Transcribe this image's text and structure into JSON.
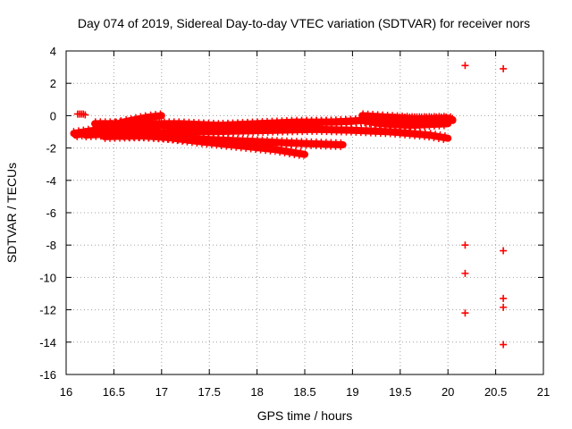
{
  "chart_data": {
    "type": "scatter",
    "title": "Day 074 of 2019, Sidereal Day-to-day VTEC variation (SDTVAR) for receiver nors",
    "xlabel": "GPS time / hours",
    "ylabel": "SDTVAR / TECUs",
    "xlim": [
      16,
      21
    ],
    "ylim": [
      -16,
      4
    ],
    "xticks": [
      16,
      16.5,
      17,
      17.5,
      18,
      18.5,
      19,
      19.5,
      20,
      20.5,
      21
    ],
    "xtick_labels": [
      "16",
      "16.5",
      "17",
      "17.5",
      "18",
      "18.5",
      "19",
      "19.5",
      "20",
      "20.5",
      "21"
    ],
    "yticks": [
      4,
      2,
      0,
      -2,
      -4,
      -6,
      -8,
      -10,
      -12,
      -14,
      -16
    ],
    "ytick_labels": [
      "4",
      "2",
      "0",
      "-2",
      "-4",
      "-6",
      "-8",
      "-10",
      "-12",
      "-14",
      "-16"
    ],
    "grid": true,
    "marker": "plus",
    "color": "#ff0000",
    "series": [
      {
        "traces": [
          {
            "points": [
              [
                16.08,
                -1.1
              ],
              [
                16.3,
                -0.9
              ],
              [
                16.6,
                -0.4
              ],
              [
                16.85,
                -0.1
              ],
              [
                17.0,
                0.0
              ]
            ]
          },
          {
            "points": [
              [
                16.1,
                -1.2
              ],
              [
                16.5,
                -0.8
              ],
              [
                17.0,
                -0.6
              ],
              [
                17.5,
                -0.7
              ],
              [
                18.0,
                -0.6
              ],
              [
                18.5,
                -0.45
              ],
              [
                19.0,
                -0.35
              ],
              [
                19.3,
                -0.2
              ],
              [
                19.6,
                -0.2
              ],
              [
                20.0,
                -0.15
              ],
              [
                20.05,
                -0.25
              ]
            ]
          },
          {
            "points": [
              [
                16.3,
                -0.5
              ],
              [
                16.7,
                -0.5
              ],
              [
                17.2,
                -0.5
              ],
              [
                17.6,
                -0.6
              ],
              [
                18.0,
                -0.5
              ],
              [
                18.4,
                -0.4
              ],
              [
                18.8,
                -0.4
              ],
              [
                19.1,
                -0.3
              ],
              [
                19.3,
                -0.5
              ],
              [
                19.6,
                -0.6
              ],
              [
                20.0,
                -0.5
              ]
            ]
          },
          {
            "points": [
              [
                16.2,
                -1.2
              ],
              [
                16.6,
                -1.1
              ],
              [
                17.0,
                -1.05
              ],
              [
                17.4,
                -1.0
              ],
              [
                17.8,
                -0.95
              ],
              [
                18.2,
                -0.9
              ],
              [
                18.6,
                -0.85
              ],
              [
                19.0,
                -0.9
              ],
              [
                19.4,
                -1.0
              ],
              [
                19.8,
                -1.2
              ],
              [
                20.0,
                -1.4
              ]
            ]
          },
          {
            "points": [
              [
                16.4,
                -1.3
              ],
              [
                16.8,
                -1.25
              ],
              [
                17.2,
                -1.4
              ],
              [
                17.6,
                -1.5
              ],
              [
                18.0,
                -1.6
              ],
              [
                18.4,
                -1.7
              ],
              [
                18.9,
                -1.8
              ]
            ]
          },
          {
            "points": [
              [
                16.6,
                -1.2
              ],
              [
                17.0,
                -1.3
              ],
              [
                17.4,
                -1.6
              ],
              [
                17.8,
                -1.85
              ],
              [
                18.2,
                -2.1
              ],
              [
                18.5,
                -2.4
              ]
            ]
          },
          {
            "points": [
              [
                19.1,
                0.0
              ],
              [
                19.4,
                -0.1
              ],
              [
                19.7,
                -0.2
              ],
              [
                20.0,
                -0.2
              ],
              [
                20.05,
                -0.3
              ]
            ]
          }
        ],
        "points": [
          [
            16.12,
            0.1
          ],
          [
            16.14,
            0.1
          ],
          [
            16.16,
            0.1
          ],
          [
            16.18,
            0.1
          ],
          [
            16.2,
            0.05
          ],
          [
            20.18,
            3.1
          ],
          [
            20.58,
            2.9
          ],
          [
            20.18,
            -8.0
          ],
          [
            20.58,
            -8.35
          ],
          [
            20.18,
            -9.75
          ],
          [
            20.58,
            -11.3
          ],
          [
            20.18,
            -12.2
          ],
          [
            20.58,
            -11.85
          ],
          [
            20.58,
            -14.15
          ]
        ]
      }
    ]
  }
}
